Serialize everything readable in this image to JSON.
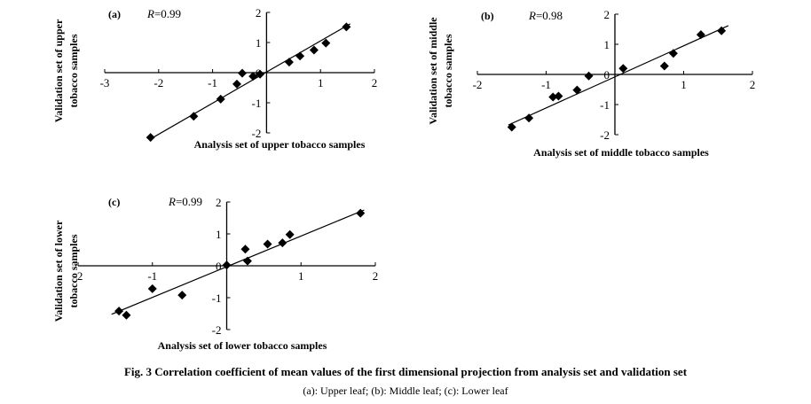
{
  "chart_data": [
    {
      "panel": "(a)",
      "type": "scatter",
      "r_prefix": "R",
      "r_value": "=0.99",
      "xlabel": "Analysis set of upper tobacco samples",
      "ylabel": [
        "Validation set of upper",
        "tobacco samples"
      ],
      "xlim": [
        -3,
        2
      ],
      "ylim": [
        -2,
        2
      ],
      "xticks": [
        "-3",
        "-2",
        "-1",
        "0",
        "1",
        "2"
      ],
      "yticks": [
        "2",
        "1",
        "0",
        "-1",
        "-2"
      ],
      "points": [
        [
          -2.15,
          -2.15
        ],
        [
          -1.35,
          -1.45
        ],
        [
          -0.85,
          -0.88
        ],
        [
          -0.55,
          -0.38
        ],
        [
          -0.45,
          -0.02
        ],
        [
          -0.25,
          -0.12
        ],
        [
          -0.12,
          -0.05
        ],
        [
          0.42,
          0.35
        ],
        [
          0.62,
          0.55
        ],
        [
          0.88,
          0.75
        ],
        [
          1.1,
          0.98
        ],
        [
          1.48,
          1.52
        ]
      ],
      "fit": [
        [
          -2.15,
          -2.2
        ],
        [
          1.55,
          1.62
        ]
      ]
    },
    {
      "panel": "(b)",
      "type": "scatter",
      "r_prefix": "R",
      "r_value": "=0.98",
      "xlabel": "Analysis set of middle tobacco samples",
      "ylabel": [
        "Validation set of middle",
        "tobacco samples"
      ],
      "xlim": [
        -2,
        2
      ],
      "ylim": [
        -2,
        2
      ],
      "xticks": [
        "-2",
        "-1",
        "0",
        "1",
        "2"
      ],
      "yticks": [
        "2",
        "1",
        "0",
        "-1",
        "-2"
      ],
      "points": [
        [
          -1.5,
          -1.75
        ],
        [
          -1.25,
          -1.45
        ],
        [
          -0.9,
          -0.75
        ],
        [
          -0.82,
          -0.72
        ],
        [
          -0.55,
          -0.52
        ],
        [
          -0.38,
          -0.05
        ],
        [
          0.12,
          0.2
        ],
        [
          0.72,
          0.28
        ],
        [
          0.85,
          0.7
        ],
        [
          1.25,
          1.32
        ],
        [
          1.55,
          1.45
        ]
      ],
      "fit": [
        [
          -1.55,
          -1.68
        ],
        [
          1.65,
          1.62
        ]
      ]
    },
    {
      "panel": "(c)",
      "type": "scatter",
      "r_prefix": "R",
      "r_value": "=0.99",
      "xlabel": "Analysis set of lower tobacco samples",
      "ylabel": [
        "Validation set of lower",
        "tobacco samples"
      ],
      "xlim": [
        -2,
        2
      ],
      "ylim": [
        -2,
        2
      ],
      "xticks": [
        "-2",
        "-1",
        "0",
        "1",
        "2"
      ],
      "yticks": [
        "2",
        "1",
        "0",
        "-1",
        "-2"
      ],
      "points": [
        [
          -1.45,
          -1.42
        ],
        [
          -1.35,
          -1.55
        ],
        [
          -1.0,
          -0.72
        ],
        [
          -0.6,
          -0.92
        ],
        [
          0.0,
          0.02
        ],
        [
          0.25,
          0.52
        ],
        [
          0.28,
          0.15
        ],
        [
          0.55,
          0.68
        ],
        [
          0.75,
          0.72
        ],
        [
          0.85,
          0.98
        ],
        [
          1.8,
          1.65
        ]
      ],
      "fit": [
        [
          -1.55,
          -1.52
        ],
        [
          1.85,
          1.75
        ]
      ]
    }
  ],
  "caption": {
    "main": "Fig. 3   Correlation coefficient of mean values of the first dimensional projection from analysis set and validation set",
    "sub": "(a): Upper leaf; (b): Middle leaf; (c): Lower leaf"
  }
}
